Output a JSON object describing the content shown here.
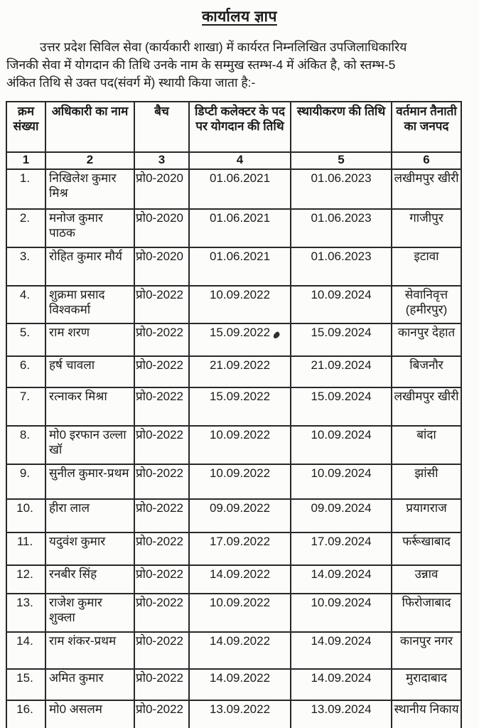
{
  "title": "कार्यालय ज्ञाप",
  "intro": {
    "line1": "उत्तर प्रदेश सिविल सेवा (कार्यकारी शाखा) में कार्यरत निम्नलिखित उपजिलाधिकारिय",
    "line2": "जिनकी सेवा में योगदान की तिथि उनके नाम के सम्मुख स्तम्भ-4 में अंकित है, को स्तम्भ-5",
    "line3": "अंकित तिथि से उक्त पद(संवर्ग में) स्थायी किया जाता है:-"
  },
  "table": {
    "headers": {
      "serial": "क्रम संख्या",
      "name": "अधिकारी का नाम",
      "batch": "बैच",
      "join_date": "डिप्टी कलेक्टर के पद पर योगदान की तिथि",
      "confirm_date": "स्थायीकरण की तिथि",
      "district": "वर्तमान तैनाती का जनपद"
    },
    "column_numbers": [
      "1",
      "2",
      "3",
      "4",
      "5",
      "6"
    ],
    "rows": [
      {
        "sn": "1.",
        "name": "निखिलेश कुमार मिश्र",
        "batch": "प्रो0-2020",
        "join_date": "01.06.2021",
        "confirm_date": "01.06.2023",
        "district": "लखीमपुर खीरी"
      },
      {
        "sn": "2.",
        "name": "मनोज कुमार पाठक",
        "batch": "प्रो0-2020",
        "join_date": "01.06.2021",
        "confirm_date": "01.06.2023",
        "district": "गाजीपुर"
      },
      {
        "sn": "3.",
        "name": "रोहित कुमार मौर्य",
        "batch": "प्रो0-2020",
        "join_date": "01.06.2021",
        "confirm_date": "01.06.2023",
        "district": "इटावा"
      },
      {
        "sn": "4.",
        "name": "शुक्रमा प्रसाद विश्वकर्मा",
        "batch": "प्रो0-2022",
        "join_date": "10.09.2022",
        "confirm_date": "10.09.2024",
        "district": "सेवानिवृत्त (हमीरपुर)"
      },
      {
        "sn": "5.",
        "name": "राम शरण",
        "batch": "प्रो0-2022",
        "join_date": "15.09.2022",
        "confirm_date": "15.09.2024",
        "district": "कानपुर देहात"
      },
      {
        "sn": "6.",
        "name": "हर्ष चावला",
        "batch": "प्रो0-2022",
        "join_date": "21.09.2022",
        "confirm_date": "21.09.2024",
        "district": "बिजनौर"
      },
      {
        "sn": "7.",
        "name": "रत्नाकर मिश्रा",
        "batch": "प्रो0-2022",
        "join_date": "15.09.2022",
        "confirm_date": "15.09.2024",
        "district": "लखीमपुर खीरी"
      },
      {
        "sn": "8.",
        "name": "मो0 इरफान उल्ला खॉ",
        "batch": "प्रो0-2022",
        "join_date": "10.09.2022",
        "confirm_date": "10.09.2024",
        "district": "बांदा"
      },
      {
        "sn": "9.",
        "name": "सुनील कुमार-प्रथम",
        "batch": "प्रो0-2022",
        "join_date": "10.09.2022",
        "confirm_date": "10.09.2024",
        "district": "झांसी"
      },
      {
        "sn": "10.",
        "name": "हीरा लाल",
        "batch": "प्रो0-2022",
        "join_date": "09.09.2022",
        "confirm_date": "09.09.2024",
        "district": "प्रयागराज"
      },
      {
        "sn": "11.",
        "name": "यदुवंश कुमार",
        "batch": "प्रो0-2022",
        "join_date": "17.09.2022",
        "confirm_date": "17.09.2024",
        "district": "फर्रूखाबाद"
      },
      {
        "sn": "12.",
        "name": "रनबीर सिंह",
        "batch": "प्रो0-2022",
        "join_date": "14.09.2022",
        "confirm_date": "14.09.2024",
        "district": "उन्नाव"
      },
      {
        "sn": "13.",
        "name": "राजेश कुमार शुक्ला",
        "batch": "प्रो0-2022",
        "join_date": "10.09.2022",
        "confirm_date": "10.09.2024",
        "district": "फिरोजाबाद"
      },
      {
        "sn": "14.",
        "name": "राम शंकर-प्रथम",
        "batch": "प्रो0-2022",
        "join_date": "14.09.2022",
        "confirm_date": "14.09.2024",
        "district": "कानपुर नगर"
      },
      {
        "sn": "15.",
        "name": "अमित कुमार",
        "batch": "प्रो0-2022",
        "join_date": "14.09.2022",
        "confirm_date": "14.09.2024",
        "district": "मुरादाबाद"
      },
      {
        "sn": "16.",
        "name": "मो0 असलम",
        "batch": "प्रो0-2022",
        "join_date": "13.09.2022",
        "confirm_date": "13.09.2024",
        "district": "स्थानीय निकाय"
      }
    ]
  },
  "colors": {
    "ink": "#1b1b1b",
    "paper": "#fcfcfa",
    "table_border": "#282828"
  }
}
